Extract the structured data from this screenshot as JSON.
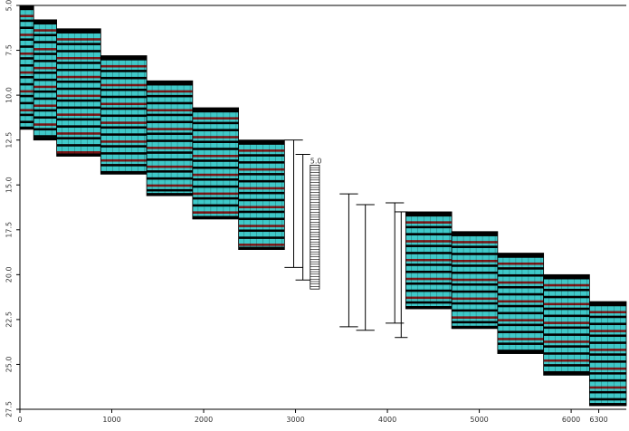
{
  "chart_data": {
    "type": "bar",
    "title": "",
    "xlabel": "",
    "ylabel": "",
    "xlim": [
      0,
      6600
    ],
    "ylim": [
      5.0,
      27.5
    ],
    "x_tick_labels": [
      "0",
      "1000",
      "2000",
      "3000",
      "4000",
      "5000",
      "6000",
      "6300"
    ],
    "x_tick_values": [
      0,
      1000,
      2000,
      3000,
      4000,
      5000,
      6000,
      6300
    ],
    "y_tick_labels": [
      "5.0",
      "7.5",
      "10.0",
      "12.5",
      "15.0",
      "17.5",
      "20.0",
      "22.5",
      "25.0",
      "27.5"
    ],
    "y_tick_values": [
      5.0,
      7.5,
      10.0,
      12.5,
      15.0,
      17.5,
      20.0,
      22.5,
      25.0,
      27.5
    ],
    "grid": false,
    "stripe_pattern": [
      "#3fc9c9",
      "#000000",
      "#3fc9c9",
      "#3fc9c9",
      "#7a1616",
      "#3fc9c9",
      "#000000",
      "#3fc9c9"
    ],
    "colors": {
      "cyan": "#3fc9c9",
      "dark_red": "#7a1616",
      "outline": "#000000"
    },
    "segments_left": [
      {
        "x0": 0,
        "x1": 150,
        "top": 5.0,
        "bottom": 11.9
      },
      {
        "x0": 150,
        "x1": 400,
        "top": 5.8,
        "bottom": 12.5
      },
      {
        "x0": 400,
        "x1": 880,
        "top": 6.3,
        "bottom": 13.4
      },
      {
        "x0": 880,
        "x1": 1380,
        "top": 7.8,
        "bottom": 14.4
      },
      {
        "x0": 1380,
        "x1": 1880,
        "top": 9.2,
        "bottom": 15.6
      },
      {
        "x0": 1880,
        "x1": 2380,
        "top": 10.7,
        "bottom": 16.9
      },
      {
        "x0": 2380,
        "x1": 2880,
        "top": 12.5,
        "bottom": 18.6
      },
      {
        "x0": 2880,
        "x1": 2880,
        "top": 14.0,
        "bottom": 19.5
      }
    ],
    "segments_right": [
      {
        "x0": 4200,
        "x1": 4700,
        "top": 16.5,
        "bottom": 21.9
      },
      {
        "x0": 4700,
        "x1": 5200,
        "top": 17.6,
        "bottom": 23.0
      },
      {
        "x0": 5200,
        "x1": 5700,
        "top": 18.8,
        "bottom": 24.4
      },
      {
        "x0": 5700,
        "x1": 6200,
        "top": 20.0,
        "bottom": 25.6
      },
      {
        "x0": 6200,
        "x1": 6600,
        "top": 21.5,
        "bottom": 27.3
      }
    ],
    "gap_brackets": [
      {
        "x0": 2880,
        "x1": 3080,
        "top": 12.5,
        "bottom": 19.6
      },
      {
        "x0": 3000,
        "x1": 3160,
        "top": 13.3,
        "bottom": 20.3
      },
      {
        "x0": 3480,
        "x1": 3680,
        "top": 15.5,
        "bottom": 22.9
      },
      {
        "x0": 3660,
        "x1": 3860,
        "top": 16.1,
        "bottom": 23.1
      },
      {
        "x0": 3980,
        "x1": 4180,
        "top": 16.0,
        "bottom": 22.7
      },
      {
        "x0": 4080,
        "x1": 4220,
        "top": 16.5,
        "bottom": 23.5
      }
    ],
    "gap_ladder": {
      "x0": 3160,
      "x1": 3260,
      "top": 13.9,
      "bottom": 20.8,
      "label": "5.0",
      "rungs": 50
    }
  }
}
